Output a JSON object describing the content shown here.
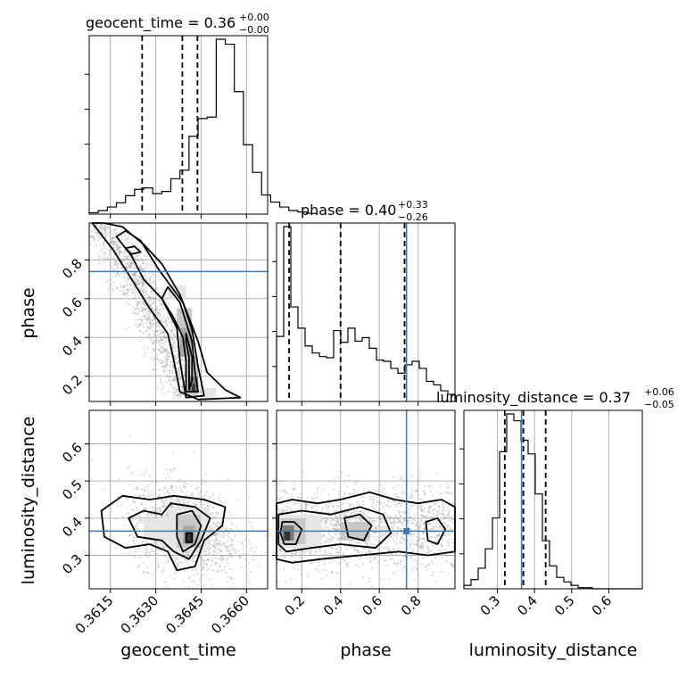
{
  "chart_data": {
    "type": "corner",
    "parameters": [
      "geocent_time",
      "phase",
      "luminosity_distance"
    ],
    "titles": {
      "geocent_time": {
        "name": "geocent_time",
        "median": "0.36",
        "plus": "+0.00",
        "minus": "−0.00"
      },
      "phase": {
        "name": "phase",
        "median": "0.40",
        "plus": "+0.33",
        "minus": "−0.26"
      },
      "luminosity_distance": {
        "name": "luminosity_distance",
        "median": "0.37",
        "plus": "+0.06",
        "minus": "−0.05"
      }
    },
    "axes": {
      "geocent_time": {
        "range": [
          0.3608,
          0.3667
        ],
        "ticks": [
          0.3615,
          0.363,
          0.3645,
          0.366
        ],
        "tick_labels": [
          "0.3615",
          "0.3630",
          "0.3645",
          "0.3660"
        ]
      },
      "phase": {
        "range": [
          0.07,
          0.99
        ],
        "ticks": [
          0.2,
          0.4,
          0.6,
          0.8
        ],
        "tick_labels": [
          "0.2",
          "0.4",
          "0.6",
          "0.8"
        ]
      },
      "luminosity_distance": {
        "range": [
          0.21,
          0.69
        ],
        "ticks": [
          0.3,
          0.4,
          0.5,
          0.6
        ],
        "tick_labels": [
          "0.3",
          "0.4",
          "0.5",
          "0.6"
        ]
      }
    },
    "injection": {
      "phase": 0.74,
      "luminosity_distance": 0.365,
      "color": "#4477aa"
    },
    "quantile_lines": {
      "geocent_time": [
        0.36255,
        0.36388,
        0.36438
      ],
      "phase": [
        0.135,
        0.4,
        0.73
      ],
      "luminosity_distance": [
        0.32,
        0.37,
        0.43
      ]
    },
    "histograms": {
      "geocent_time": {
        "edges_start": 0.3608,
        "bin_width": 0.0003,
        "counts": [
          2,
          5,
          10,
          16,
          26,
          35,
          37,
          29,
          32,
          50,
          62,
          110,
          135,
          137,
          247,
          240,
          173,
          98,
          59,
          27,
          17,
          10,
          5,
          3,
          1
        ]
      },
      "phase": {
        "edges_start": 0.07,
        "bin_width": 0.0368,
        "counts": [
          55,
          148,
          80,
          62,
          47,
          41,
          38,
          37,
          60,
          50,
          62,
          51,
          54,
          45,
          35,
          34,
          28,
          24,
          31,
          34,
          28,
          17,
          14,
          9,
          6
        ]
      },
      "luminosity_distance": {
        "edges_start": 0.21,
        "bin_width": 0.0192,
        "counts": [
          3,
          8,
          18,
          35,
          62,
          120,
          153,
          147,
          130,
          118,
          83,
          42,
          20,
          10,
          6,
          3,
          1,
          1,
          0,
          0,
          0,
          0,
          0,
          0,
          0
        ]
      }
    },
    "grid": true
  }
}
